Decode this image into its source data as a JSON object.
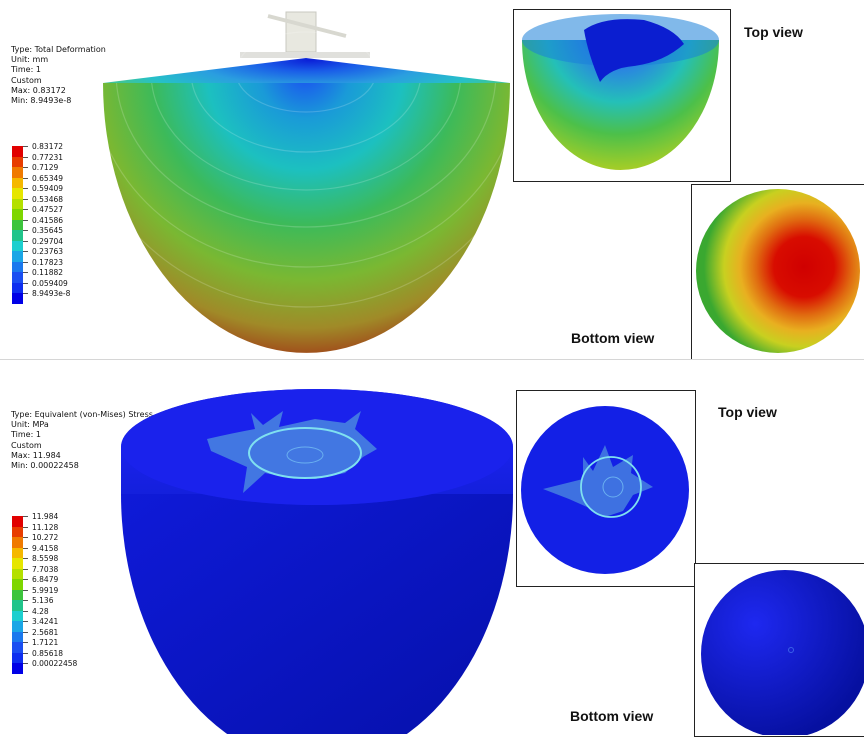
{
  "deformation": {
    "info": [
      "Type: Total Deformation",
      "Unit: mm",
      "Time: 1",
      "Custom",
      "Max: 0.83172",
      "Min: 8.9493e-8"
    ],
    "legend": [
      "0.83172",
      "0.77231",
      "0.7129",
      "0.65349",
      "0.59409",
      "0.53468",
      "0.47527",
      "0.41586",
      "0.35645",
      "0.29704",
      "0.23763",
      "0.17823",
      "0.11882",
      "0.059409",
      "8.9493e-8"
    ],
    "legend_colors": [
      "#e10000",
      "#e83c00",
      "#f07a00",
      "#f5b800",
      "#e6e600",
      "#b4e000",
      "#7ed600",
      "#3cc43c",
      "#20c48a",
      "#1ccfcf",
      "#1aa6e6",
      "#1a78ee",
      "#1a4ef2",
      "#0d2ef0",
      "#0000e6"
    ],
    "caption_top": "Top view",
    "caption_bottom": "Bottom view"
  },
  "stress": {
    "info": [
      "Type: Equivalent (von-Mises) Stress",
      "Unit: MPa",
      "Time: 1",
      "Custom",
      "Max: 11.984",
      "Min: 0.00022458"
    ],
    "legend": [
      "11.984",
      "11.128",
      "10.272",
      "9.4158",
      "8.5598",
      "7.7038",
      "6.8479",
      "5.9919",
      "5.136",
      "4.28",
      "3.4241",
      "2.5681",
      "1.7121",
      "0.85618",
      "0.00022458"
    ],
    "legend_colors": [
      "#e10000",
      "#e83c00",
      "#f07a00",
      "#f5b800",
      "#e6e600",
      "#b4e000",
      "#7ed600",
      "#3cc43c",
      "#20c48a",
      "#1ccfcf",
      "#1aa6e6",
      "#1a78ee",
      "#1a4ef2",
      "#0d2ef0",
      "#0000e6"
    ],
    "caption_top": "Top view",
    "caption_bottom": "Bottom view"
  }
}
